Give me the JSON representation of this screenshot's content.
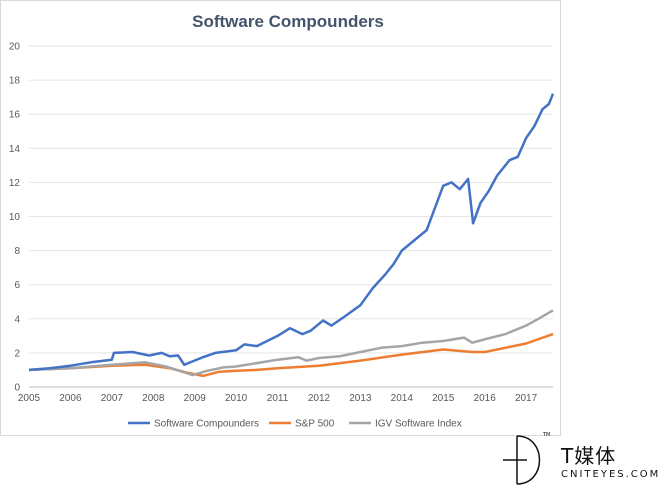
{
  "chart_data": {
    "type": "line",
    "title": "Software Compounders",
    "xlabel": "",
    "ylabel": "",
    "xlim": [
      2005,
      2017.65
    ],
    "ylim": [
      0,
      20
    ],
    "y_ticks": [
      "0",
      "2",
      "4",
      "6",
      "8",
      "10",
      "12",
      "14",
      "16",
      "18",
      "20"
    ],
    "x_ticks": [
      "2005",
      "2006",
      "2007",
      "2008",
      "2009",
      "2010",
      "2011",
      "2012",
      "2013",
      "2014",
      "2015",
      "2016",
      "2017"
    ],
    "grid": "horizontal",
    "legend_position": "bottom",
    "series": [
      {
        "name": "Software Compounders",
        "color": "#4472c4",
        "points": [
          [
            2005.0,
            1.0
          ],
          [
            2005.5,
            1.1
          ],
          [
            2006.0,
            1.25
          ],
          [
            2006.5,
            1.45
          ],
          [
            2007.0,
            1.6
          ],
          [
            2007.05,
            2.0
          ],
          [
            2007.5,
            2.05
          ],
          [
            2007.9,
            1.85
          ],
          [
            2008.2,
            2.0
          ],
          [
            2008.4,
            1.8
          ],
          [
            2008.6,
            1.85
          ],
          [
            2008.75,
            1.3
          ],
          [
            2008.95,
            1.5
          ],
          [
            2009.2,
            1.75
          ],
          [
            2009.5,
            2.0
          ],
          [
            2010.0,
            2.15
          ],
          [
            2010.2,
            2.5
          ],
          [
            2010.5,
            2.4
          ],
          [
            2011.0,
            3.0
          ],
          [
            2011.3,
            3.45
          ],
          [
            2011.6,
            3.1
          ],
          [
            2011.8,
            3.3
          ],
          [
            2012.1,
            3.9
          ],
          [
            2012.3,
            3.6
          ],
          [
            2012.6,
            4.1
          ],
          [
            2013.0,
            4.8
          ],
          [
            2013.3,
            5.8
          ],
          [
            2013.6,
            6.6
          ],
          [
            2013.8,
            7.2
          ],
          [
            2014.0,
            8.0
          ],
          [
            2014.3,
            8.6
          ],
          [
            2014.6,
            9.2
          ],
          [
            2014.8,
            10.5
          ],
          [
            2015.0,
            11.8
          ],
          [
            2015.2,
            12.0
          ],
          [
            2015.4,
            11.6
          ],
          [
            2015.6,
            12.2
          ],
          [
            2015.72,
            9.6
          ],
          [
            2015.9,
            10.8
          ],
          [
            2016.1,
            11.5
          ],
          [
            2016.3,
            12.4
          ],
          [
            2016.6,
            13.3
          ],
          [
            2016.8,
            13.5
          ],
          [
            2017.0,
            14.6
          ],
          [
            2017.2,
            15.3
          ],
          [
            2017.4,
            16.3
          ],
          [
            2017.55,
            16.6
          ],
          [
            2017.65,
            17.2
          ]
        ]
      },
      {
        "name": "S&P 500",
        "color": "#ed7d31",
        "points": [
          [
            2005.0,
            1.0
          ],
          [
            2006.0,
            1.1
          ],
          [
            2007.0,
            1.25
          ],
          [
            2007.8,
            1.3
          ],
          [
            2008.4,
            1.1
          ],
          [
            2008.8,
            0.85
          ],
          [
            2009.2,
            0.65
          ],
          [
            2009.6,
            0.9
          ],
          [
            2010.0,
            0.95
          ],
          [
            2010.5,
            1.0
          ],
          [
            2011.0,
            1.1
          ],
          [
            2011.7,
            1.2
          ],
          [
            2012.0,
            1.25
          ],
          [
            2013.0,
            1.55
          ],
          [
            2014.0,
            1.9
          ],
          [
            2015.0,
            2.2
          ],
          [
            2015.7,
            2.05
          ],
          [
            2016.0,
            2.05
          ],
          [
            2016.5,
            2.3
          ],
          [
            2017.0,
            2.55
          ],
          [
            2017.65,
            3.1
          ]
        ]
      },
      {
        "name": "IGV Software Index",
        "color": "#a5a5a5",
        "points": [
          [
            2005.0,
            1.0
          ],
          [
            2006.0,
            1.1
          ],
          [
            2006.5,
            1.2
          ],
          [
            2007.0,
            1.3
          ],
          [
            2007.8,
            1.45
          ],
          [
            2008.3,
            1.2
          ],
          [
            2008.7,
            0.9
          ],
          [
            2008.95,
            0.7
          ],
          [
            2009.3,
            0.95
          ],
          [
            2009.7,
            1.15
          ],
          [
            2010.0,
            1.2
          ],
          [
            2010.5,
            1.4
          ],
          [
            2011.0,
            1.6
          ],
          [
            2011.5,
            1.75
          ],
          [
            2011.7,
            1.55
          ],
          [
            2012.0,
            1.7
          ],
          [
            2012.5,
            1.8
          ],
          [
            2013.0,
            2.05
          ],
          [
            2013.5,
            2.3
          ],
          [
            2014.0,
            2.4
          ],
          [
            2014.5,
            2.6
          ],
          [
            2015.0,
            2.7
          ],
          [
            2015.5,
            2.9
          ],
          [
            2015.7,
            2.6
          ],
          [
            2016.0,
            2.8
          ],
          [
            2016.5,
            3.1
          ],
          [
            2017.0,
            3.6
          ],
          [
            2017.3,
            4.0
          ],
          [
            2017.65,
            4.5
          ]
        ]
      }
    ]
  },
  "watermark": {
    "brand_cn": "T媒体",
    "brand_en": "CNITEYES.COM",
    "tm": "TM"
  }
}
